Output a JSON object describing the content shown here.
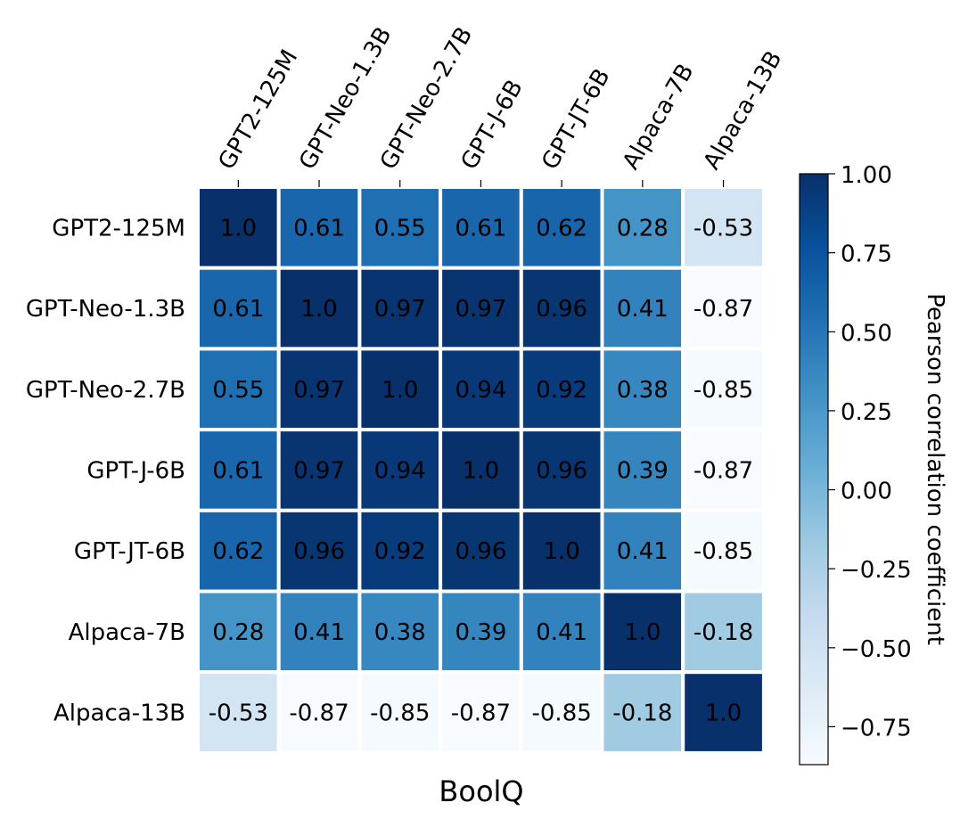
{
  "chart_data": {
    "type": "heatmap",
    "xlabel": "BoolQ",
    "colorbar_label": "Pearson correlation coefficient",
    "x_categories": [
      "GPT2-125M",
      "GPT-Neo-1.3B",
      "GPT-Neo-2.7B",
      "GPT-J-6B",
      "GPT-JT-6B",
      "Alpaca-7B",
      "Alpaca-13B"
    ],
    "y_categories": [
      "GPT2-125M",
      "GPT-Neo-1.3B",
      "GPT-Neo-2.7B",
      "GPT-J-6B",
      "GPT-JT-6B",
      "Alpaca-7B",
      "Alpaca-13B"
    ],
    "values": [
      [
        1.0,
        0.61,
        0.55,
        0.61,
        0.62,
        0.28,
        -0.53
      ],
      [
        0.61,
        1.0,
        0.97,
        0.97,
        0.96,
        0.41,
        -0.87
      ],
      [
        0.55,
        0.97,
        1.0,
        0.94,
        0.92,
        0.38,
        -0.85
      ],
      [
        0.61,
        0.97,
        0.94,
        1.0,
        0.96,
        0.39,
        -0.87
      ],
      [
        0.62,
        0.96,
        0.92,
        0.96,
        1.0,
        0.41,
        -0.85
      ],
      [
        0.28,
        0.41,
        0.38,
        0.39,
        0.41,
        1.0,
        -0.18
      ],
      [
        -0.53,
        -0.87,
        -0.85,
        -0.87,
        -0.85,
        -0.18,
        1.0
      ]
    ],
    "cell_labels": [
      [
        "1.0",
        "0.61",
        "0.55",
        "0.61",
        "0.62",
        "0.28",
        "-0.53"
      ],
      [
        "0.61",
        "1.0",
        "0.97",
        "0.97",
        "0.96",
        "0.41",
        "-0.87"
      ],
      [
        "0.55",
        "0.97",
        "1.0",
        "0.94",
        "0.92",
        "0.38",
        "-0.85"
      ],
      [
        "0.61",
        "0.97",
        "0.94",
        "1.0",
        "0.96",
        "0.39",
        "-0.87"
      ],
      [
        "0.62",
        "0.96",
        "0.92",
        "0.96",
        "1.0",
        "0.41",
        "-0.85"
      ],
      [
        "0.28",
        "0.41",
        "0.38",
        "0.39",
        "0.41",
        "1.0",
        "-0.18"
      ],
      [
        "-0.53",
        "-0.87",
        "-0.85",
        "-0.87",
        "-0.85",
        "-0.18",
        "1.0"
      ]
    ],
    "colormap": "Blues",
    "colormap_stops": [
      "#f7fbff",
      "#deebf7",
      "#c6dbef",
      "#9ecae1",
      "#6baed6",
      "#4292c6",
      "#2171b5",
      "#08519c",
      "#08306b"
    ],
    "color_range": [
      -0.87,
      1.0
    ],
    "colorbar_ticks": [
      1.0,
      0.75,
      0.5,
      0.25,
      0.0,
      -0.25,
      -0.5,
      -0.75
    ],
    "colorbar_tick_labels": [
      "1.00",
      "0.75",
      "0.50",
      "0.25",
      "0.00",
      "−0.25",
      "−0.50",
      "−0.75"
    ],
    "x_tick_position": "top",
    "x_tick_rotation": "60 degrees",
    "cell_border_color": "#ffffff",
    "grid": false
  }
}
